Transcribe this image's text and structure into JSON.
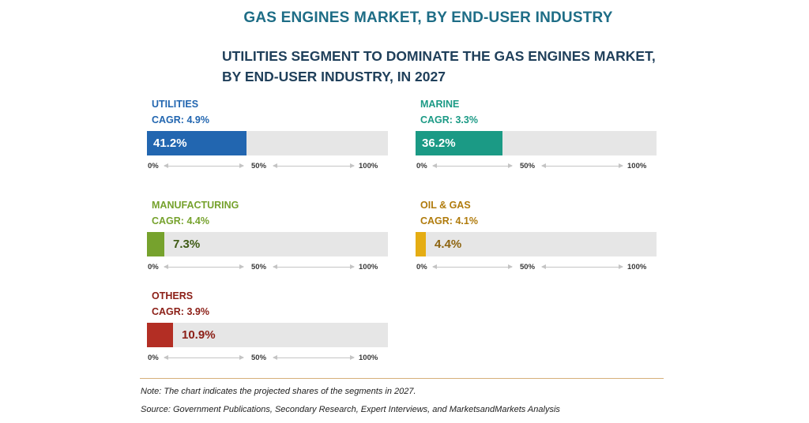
{
  "page_title": "GAS ENGINES MARKET, BY END-USER INDUSTRY",
  "subtitle_line1": "UTILITIES SEGMENT TO DOMINATE THE GAS ENGINES MARKET,",
  "subtitle_line2": "BY END-USER INDUSTRY, IN 2027",
  "chart_data": {
    "type": "bar",
    "title": "UTILITIES SEGMENT TO DOMINATE THE GAS ENGINES MARKET, BY END-USER INDUSTRY, IN 2027",
    "xlim": [
      0,
      100
    ],
    "axis_ticks": [
      "0%",
      "50%",
      "100%"
    ],
    "categories": [
      "UTILITIES",
      "MARINE",
      "MANUFACTURING",
      "OIL & GAS",
      "OTHERS"
    ],
    "values": [
      41.2,
      36.2,
      7.3,
      4.4,
      10.9
    ],
    "segments": [
      {
        "name": "UTILITIES",
        "cagr": "CAGR: 4.9%",
        "value": 41.2,
        "value_label": "41.2%",
        "color": "#2266b0",
        "label_color": "#2266b0",
        "value_text_color": "#ffffff"
      },
      {
        "name": "MARINE",
        "cagr": "CAGR: 3.3%",
        "value": 36.2,
        "value_label": "36.2%",
        "color": "#1b9a85",
        "label_color": "#1b9a85",
        "value_text_color": "#ffffff"
      },
      {
        "name": "MANUFACTURING",
        "cagr": "CAGR: 4.4%",
        "value": 7.3,
        "value_label": "7.3%",
        "color": "#76a22d",
        "label_color": "#76a22d",
        "value_text_color": "#3e5a14"
      },
      {
        "name": "OIL & GAS",
        "cagr": "CAGR: 4.1%",
        "value": 4.4,
        "value_label": "4.4%",
        "color": "#e5ad13",
        "label_color": "#b07b0c",
        "value_text_color": "#8d6410"
      },
      {
        "name": "OTHERS",
        "cagr": "CAGR: 3.9%",
        "value": 10.9,
        "value_label": "10.9%",
        "color": "#b32e24",
        "label_color": "#8c2018",
        "value_text_color": "#8c2018"
      }
    ]
  },
  "note": "Note: The chart indicates the projected shares of the segments in 2027.",
  "source": "Source: Government Publications, Secondary Research, Expert Interviews, and MarketsandMarkets Analysis"
}
